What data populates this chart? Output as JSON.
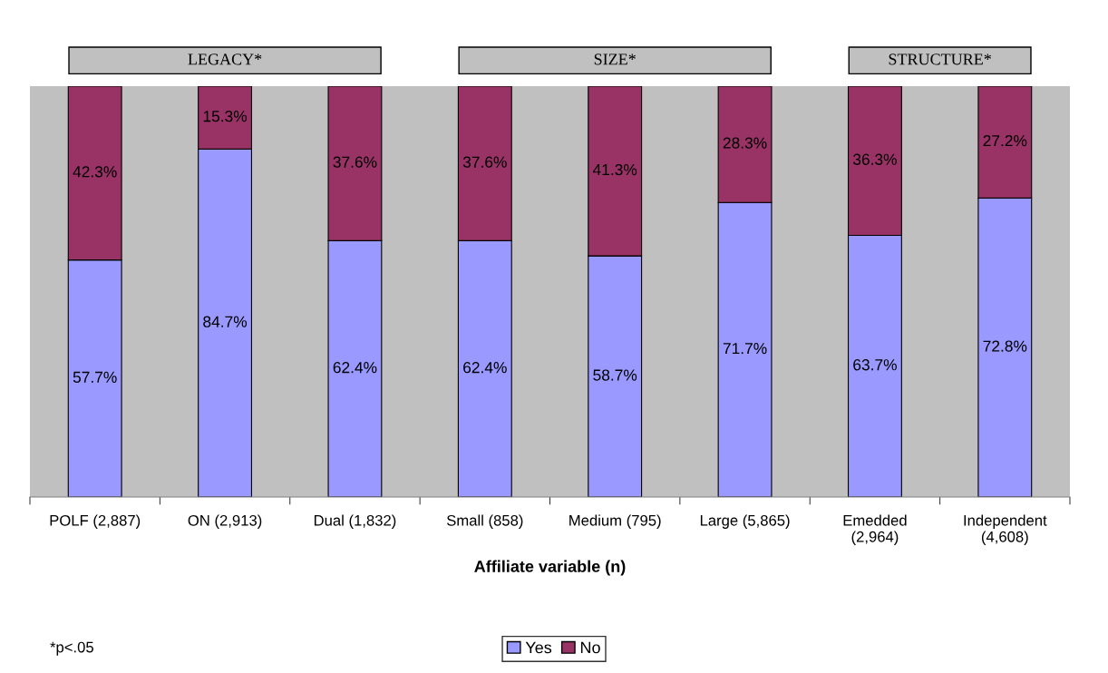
{
  "chart_data": {
    "type": "bar",
    "stacked": true,
    "xlabel": "Affiliate variable (n)",
    "categories": [
      "POLF (2,887)",
      "ON (2,913)",
      "Dual (1,832)",
      "Small (858)",
      "Medium (795)",
      "Large (5,865)",
      "Emedded\n(2,964)",
      "Independent\n(4,608)"
    ],
    "series": [
      {
        "name": "Yes",
        "color": "#9999ff",
        "values": [
          57.7,
          84.7,
          62.4,
          62.4,
          58.7,
          71.7,
          63.7,
          72.8
        ],
        "value_labels": [
          "57.7%",
          "84.7%",
          "62.4%",
          "62.4%",
          "58.7%",
          "71.7%",
          "63.7%",
          "72.8%"
        ]
      },
      {
        "name": "No",
        "color": "#993366",
        "values": [
          42.3,
          15.3,
          37.6,
          37.6,
          41.3,
          28.3,
          36.3,
          27.2
        ],
        "value_labels": [
          "42.3%",
          "15.3%",
          "37.6%",
          "37.6%",
          "41.3%",
          "28.3%",
          "36.3%",
          "27.2%"
        ]
      }
    ],
    "ylim": [
      0,
      100
    ],
    "legend": "bottom",
    "annotations": [
      "LEGACY*",
      "SIZE*",
      "STRUCTURE*",
      "*p<.05"
    ]
  }
}
